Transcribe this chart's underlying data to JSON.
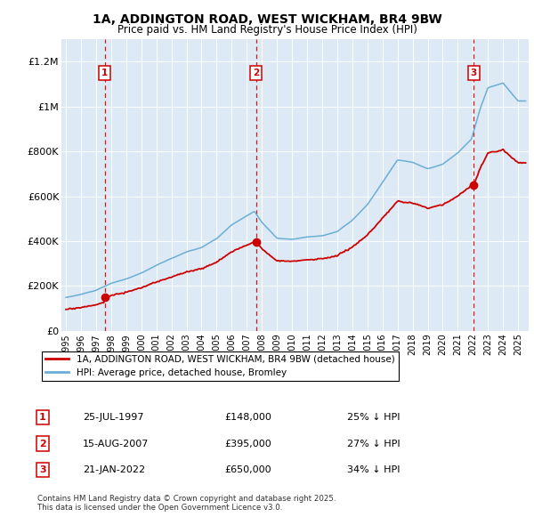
{
  "title": "1A, ADDINGTON ROAD, WEST WICKHAM, BR4 9BW",
  "subtitle": "Price paid vs. HM Land Registry's House Price Index (HPI)",
  "sale_info": [
    {
      "num": "1",
      "date": "25-JUL-1997",
      "price": "£148,000",
      "note": "25% ↓ HPI"
    },
    {
      "num": "2",
      "date": "15-AUG-2007",
      "price": "£395,000",
      "note": "27% ↓ HPI"
    },
    {
      "num": "3",
      "date": "21-JAN-2022",
      "price": "£650,000",
      "note": "34% ↓ HPI"
    }
  ],
  "legend_entries": [
    "1A, ADDINGTON ROAD, WEST WICKHAM, BR4 9BW (detached house)",
    "HPI: Average price, detached house, Bromley"
  ],
  "line_color_red": "#CC0000",
  "line_color_blue": "#6BAED6",
  "background_color": "#DDEAF6",
  "ylim": [
    0,
    1300000
  ],
  "yticks": [
    0,
    200000,
    400000,
    600000,
    800000,
    1000000,
    1200000
  ],
  "ytick_labels": [
    "£0",
    "£200K",
    "£400K",
    "£600K",
    "£800K",
    "£1M",
    "£1.2M"
  ],
  "sale_year_floats": [
    1997.58,
    2007.62,
    2022.05
  ],
  "sale_prices": [
    148000,
    395000,
    650000
  ],
  "copyright_text": "Contains HM Land Registry data © Crown copyright and database right 2025.\nThis data is licensed under the Open Government Licence v3.0."
}
